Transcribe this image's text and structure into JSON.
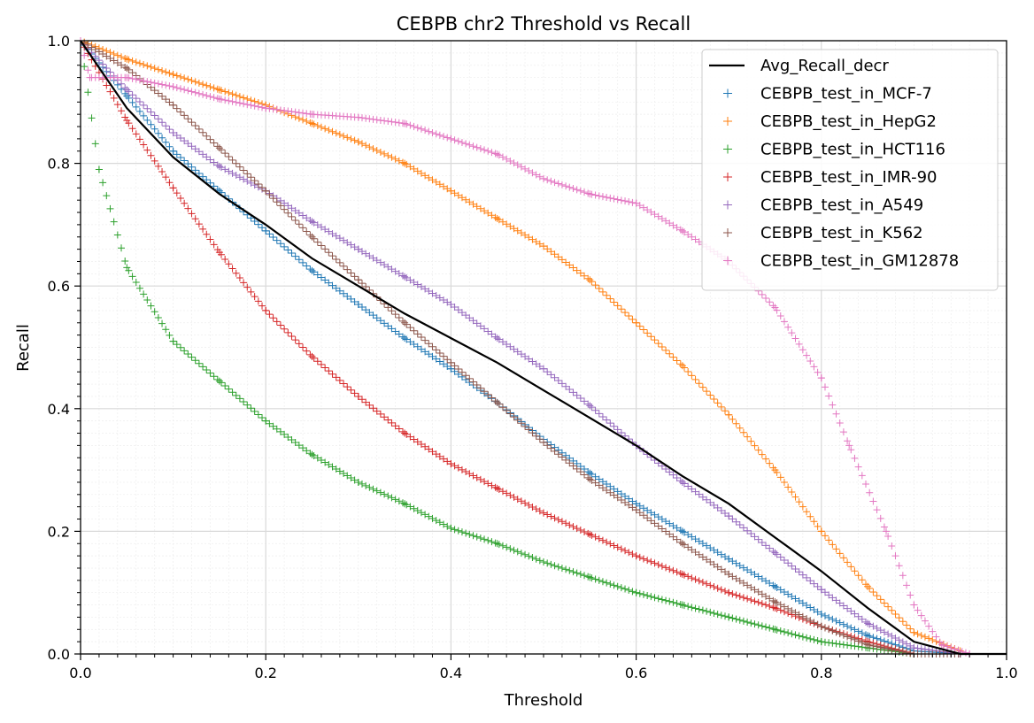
{
  "chart_data": {
    "type": "scatter",
    "title": "CEBPB chr2 Threshold vs Recall",
    "xlabel": "Threshold",
    "ylabel": "Recall",
    "xlim": [
      0.0,
      1.0
    ],
    "ylim": [
      0.0,
      1.0
    ],
    "xticks": [
      "0.0",
      "0.2",
      "0.4",
      "0.6",
      "0.8",
      "1.0"
    ],
    "yticks": [
      "0.0",
      "0.2",
      "0.4",
      "0.6",
      "0.8",
      "1.0"
    ],
    "grid": true,
    "legend_position": "top-right",
    "series": [
      {
        "name": "Avg_Recall_decr",
        "kind": "line",
        "color": "#000000",
        "x": [
          0.0,
          0.05,
          0.1,
          0.15,
          0.2,
          0.25,
          0.3,
          0.35,
          0.4,
          0.45,
          0.5,
          0.55,
          0.6,
          0.65,
          0.7,
          0.75,
          0.8,
          0.85,
          0.9,
          0.95,
          1.0
        ],
        "y": [
          1.0,
          0.89,
          0.81,
          0.75,
          0.7,
          0.645,
          0.6,
          0.555,
          0.515,
          0.475,
          0.43,
          0.385,
          0.34,
          0.29,
          0.245,
          0.19,
          0.135,
          0.075,
          0.02,
          0.0,
          0.0
        ]
      },
      {
        "name": "CEBPB_test_in_MCF-7",
        "kind": "marker",
        "color": "#1f77b4",
        "x": [
          0.0,
          0.05,
          0.1,
          0.15,
          0.2,
          0.25,
          0.3,
          0.35,
          0.4,
          0.45,
          0.5,
          0.55,
          0.6,
          0.65,
          0.7,
          0.75,
          0.8,
          0.85,
          0.9,
          0.95
        ],
        "y": [
          1.0,
          0.91,
          0.82,
          0.755,
          0.69,
          0.625,
          0.57,
          0.515,
          0.465,
          0.41,
          0.35,
          0.295,
          0.245,
          0.2,
          0.155,
          0.11,
          0.065,
          0.03,
          0.005,
          0.0
        ]
      },
      {
        "name": "CEBPB_test_in_HepG2",
        "kind": "marker",
        "color": "#ff7f0e",
        "x": [
          0.0,
          0.05,
          0.1,
          0.15,
          0.2,
          0.25,
          0.3,
          0.35,
          0.4,
          0.45,
          0.5,
          0.55,
          0.6,
          0.65,
          0.7,
          0.75,
          0.8,
          0.85,
          0.9,
          0.95
        ],
        "y": [
          1.0,
          0.97,
          0.945,
          0.92,
          0.895,
          0.865,
          0.835,
          0.8,
          0.755,
          0.71,
          0.665,
          0.61,
          0.54,
          0.47,
          0.39,
          0.3,
          0.2,
          0.11,
          0.035,
          0.005
        ]
      },
      {
        "name": "CEBPB_test_in_HCT116",
        "kind": "marker",
        "color": "#2ca02c",
        "x": [
          0.0,
          0.02,
          0.05,
          0.1,
          0.15,
          0.2,
          0.25,
          0.3,
          0.35,
          0.4,
          0.45,
          0.5,
          0.55,
          0.6,
          0.65,
          0.7,
          0.75,
          0.8,
          0.85,
          0.9
        ],
        "y": [
          1.0,
          0.79,
          0.63,
          0.51,
          0.445,
          0.38,
          0.325,
          0.28,
          0.245,
          0.205,
          0.18,
          0.15,
          0.125,
          0.1,
          0.08,
          0.06,
          0.04,
          0.02,
          0.01,
          0.0
        ]
      },
      {
        "name": "CEBPB_test_in_IMR-90",
        "kind": "marker",
        "color": "#d62728",
        "x": [
          0.0,
          0.05,
          0.1,
          0.15,
          0.2,
          0.25,
          0.3,
          0.35,
          0.4,
          0.45,
          0.5,
          0.55,
          0.6,
          0.65,
          0.7,
          0.75,
          0.8,
          0.85,
          0.9
        ],
        "y": [
          1.0,
          0.87,
          0.76,
          0.655,
          0.56,
          0.485,
          0.42,
          0.36,
          0.31,
          0.27,
          0.23,
          0.195,
          0.16,
          0.13,
          0.1,
          0.075,
          0.045,
          0.02,
          0.0
        ]
      },
      {
        "name": "CEBPB_test_in_A549",
        "kind": "marker",
        "color": "#9467bd",
        "x": [
          0.0,
          0.05,
          0.1,
          0.15,
          0.2,
          0.25,
          0.3,
          0.35,
          0.4,
          0.45,
          0.5,
          0.55,
          0.6,
          0.65,
          0.7,
          0.75,
          0.8,
          0.85,
          0.9,
          0.95
        ],
        "y": [
          1.0,
          0.92,
          0.85,
          0.795,
          0.755,
          0.705,
          0.66,
          0.615,
          0.57,
          0.515,
          0.465,
          0.405,
          0.34,
          0.28,
          0.225,
          0.165,
          0.105,
          0.05,
          0.01,
          0.0
        ]
      },
      {
        "name": "CEBPB_test_in_K562",
        "kind": "marker",
        "color": "#8c564b",
        "x": [
          0.0,
          0.05,
          0.1,
          0.15,
          0.2,
          0.25,
          0.3,
          0.35,
          0.4,
          0.45,
          0.5,
          0.55,
          0.6,
          0.65,
          0.7,
          0.75,
          0.8,
          0.85,
          0.9,
          0.95
        ],
        "y": [
          1.0,
          0.955,
          0.895,
          0.825,
          0.755,
          0.68,
          0.61,
          0.54,
          0.475,
          0.41,
          0.345,
          0.285,
          0.235,
          0.18,
          0.13,
          0.085,
          0.045,
          0.015,
          0.0,
          0.0
        ]
      },
      {
        "name": "CEBPB_test_in_GM12878",
        "kind": "marker",
        "color": "#e377c2",
        "x": [
          0.0,
          0.01,
          0.05,
          0.1,
          0.15,
          0.2,
          0.25,
          0.3,
          0.35,
          0.4,
          0.45,
          0.5,
          0.55,
          0.6,
          0.65,
          0.7,
          0.75,
          0.8,
          0.83,
          0.87,
          0.9,
          0.93,
          0.96
        ],
        "y": [
          1.0,
          0.94,
          0.94,
          0.925,
          0.905,
          0.89,
          0.88,
          0.875,
          0.865,
          0.84,
          0.815,
          0.775,
          0.75,
          0.735,
          0.69,
          0.64,
          0.565,
          0.45,
          0.34,
          0.2,
          0.08,
          0.015,
          0.0
        ]
      }
    ]
  }
}
